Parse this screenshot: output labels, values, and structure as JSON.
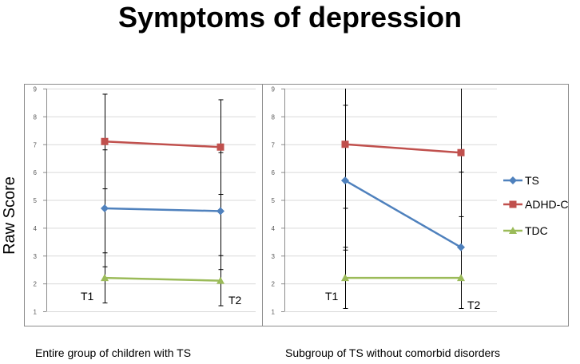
{
  "title": "Symptoms of depression",
  "ylabel": "Raw Score",
  "ylim": [
    1,
    9
  ],
  "yticks": [
    "1",
    "2",
    "3",
    "4",
    "5",
    "6",
    "7",
    "8",
    "9"
  ],
  "colors": {
    "TS": "#4f81bd",
    "ADHD-C": "#c0504d",
    "TDC": "#9bbb59",
    "error_bar": "#000000",
    "grid": "#d9d9d9",
    "frame": "#8c8c8c"
  },
  "legend": [
    {
      "name": "TS",
      "marker": "diamond"
    },
    {
      "name": "ADHD-C",
      "marker": "square"
    },
    {
      "name": "TDC",
      "marker": "triangle"
    }
  ],
  "chart_data": [
    {
      "type": "line",
      "caption": "Entire group of children with TS",
      "x": [
        "T1",
        "T2"
      ],
      "series": [
        {
          "name": "TS",
          "values": [
            4.7,
            4.6
          ],
          "error_low": [
            2.6,
            2.5
          ],
          "error_high": [
            6.8,
            6.7
          ]
        },
        {
          "name": "ADHD-C",
          "values": [
            7.1,
            6.9
          ],
          "error_low": [
            5.4,
            5.2
          ],
          "error_high": [
            8.8,
            8.6
          ]
        },
        {
          "name": "TDC",
          "values": [
            2.2,
            2.1
          ],
          "error_low": [
            1.3,
            1.2
          ],
          "error_high": [
            3.1,
            3.0
          ]
        }
      ]
    },
    {
      "type": "line",
      "caption": "Subgroup of TS without comorbid disorders",
      "x": [
        "T1",
        "T2"
      ],
      "series": [
        {
          "name": "TS",
          "values": [
            5.7,
            3.3
          ],
          "error_low": [
            3.2,
            1.1
          ],
          "error_high": [
            8.4,
            6.0
          ]
        },
        {
          "name": "ADHD-C",
          "values": [
            7.0,
            6.7
          ],
          "error_low": [
            4.7,
            4.4
          ],
          "error_high": [
            9.0,
            9.0
          ]
        },
        {
          "name": "TDC",
          "values": [
            2.2,
            2.2
          ],
          "error_low": [
            1.1,
            1.1
          ],
          "error_high": [
            3.3,
            3.3
          ]
        }
      ]
    }
  ]
}
